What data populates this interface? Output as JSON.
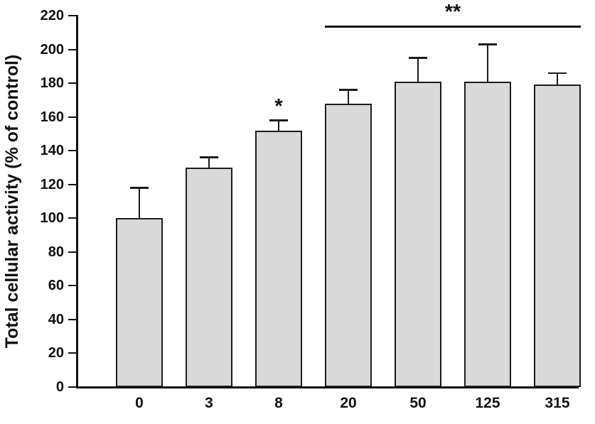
{
  "chart_data": {
    "type": "bar",
    "title": "",
    "ylabel": "Total cellular activity (% of control)",
    "xlabel": "",
    "ylim": [
      0,
      220
    ],
    "ytick_step": 20,
    "categories": [
      "0",
      "3",
      "8",
      "20",
      "50",
      "125",
      "315"
    ],
    "values": [
      100,
      130,
      152,
      168,
      181,
      181,
      179
    ],
    "errors": [
      18,
      6,
      6,
      8,
      14,
      22,
      7
    ],
    "bar_fill_color": "#d9d9d9",
    "bar_border_color": "#1c1c1c",
    "axis_color": "#111111",
    "grid": false,
    "legend": false,
    "annotations": [
      {
        "type": "star",
        "label": "*",
        "bar_index": 2
      },
      {
        "type": "bracket",
        "label": "**",
        "from_index": 3,
        "to_index": 6,
        "y_value": 214
      }
    ]
  }
}
